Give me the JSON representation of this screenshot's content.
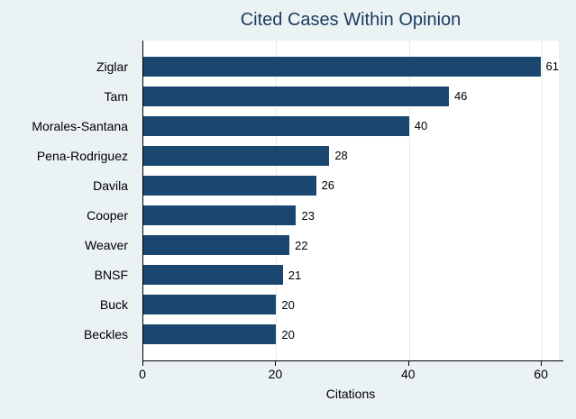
{
  "colors": {
    "background": "#eaf2f3",
    "plot_bg": "#ffffff",
    "bar": "#1a476f",
    "title": "#1c3a5f",
    "grid": "#e6ebec",
    "axis": "#000000"
  },
  "chart_data": {
    "type": "bar",
    "orientation": "horizontal",
    "title": "Cited Cases Within Opinion",
    "xlabel": "Citations",
    "ylabel": "",
    "categories": [
      "Ziglar",
      "Tam",
      "Morales-Santana",
      "Pena-Rodriguez",
      "Davila",
      "Cooper",
      "Weaver",
      "BNSF",
      "Buck",
      "Beckles"
    ],
    "values": [
      61,
      46,
      40,
      28,
      26,
      23,
      22,
      21,
      20,
      20
    ],
    "bar_value_labels": [
      61,
      46,
      40,
      28,
      26,
      23,
      22,
      21,
      20,
      20
    ],
    "xticks": [
      0,
      20,
      40,
      60
    ],
    "xlim": [
      0,
      62.7
    ],
    "grid": true,
    "legend": "none"
  }
}
